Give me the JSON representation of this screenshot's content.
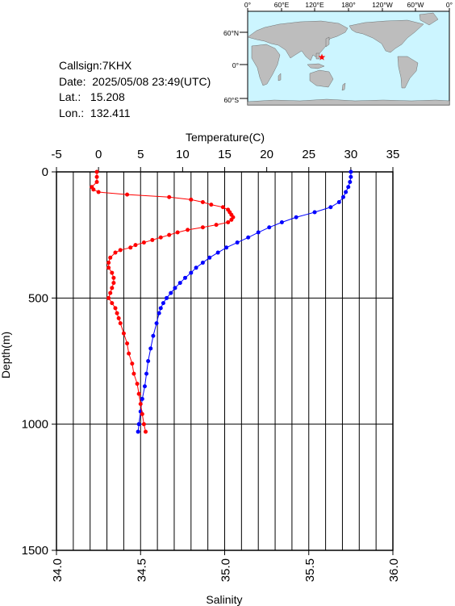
{
  "info": {
    "callsign": "Callsign:7KHX",
    "date": "Date:  2025/05/08 23:49(UTC)",
    "lat": "Lat.:   15.208",
    "lon": "Lon.:  132.411"
  },
  "map": {
    "top_labels": [
      "0°",
      "60°E",
      "120°E",
      "180°",
      "120°W",
      "60°W",
      "0°"
    ],
    "right_labels": [
      "60°N",
      "0°",
      "60°S"
    ],
    "station_marker": "red-star",
    "colors": {
      "ocean": "#ccf5ff",
      "land": "#bdbdbd",
      "star": "#ff0000"
    }
  },
  "chart_data": {
    "type": "line",
    "top_axis_label": "Temperature(C)",
    "bottom_axis_label": "Salinity",
    "y_axis_label": "Depth(m)",
    "temperature_ticks": [
      "-5",
      "0",
      "5",
      "10",
      "15",
      "20",
      "25",
      "30",
      "35"
    ],
    "salinity_ticks": [
      "34.0",
      "34.5",
      "35.0",
      "35.5",
      "36.0"
    ],
    "depth_ticks": [
      "0",
      "500",
      "1000",
      "1500"
    ],
    "temperature_range": [
      -5,
      35
    ],
    "salinity_range": [
      34.0,
      36.0
    ],
    "depth_range": [
      0,
      1500
    ],
    "grid": true,
    "series": [
      {
        "color": "#0000ff",
        "axis": "temperature",
        "points": [
          [
            0,
            30.0
          ],
          [
            20,
            30.0
          ],
          [
            40,
            29.9
          ],
          [
            60,
            29.7
          ],
          [
            80,
            29.4
          ],
          [
            100,
            29.1
          ],
          [
            120,
            28.6
          ],
          [
            140,
            27.6
          ],
          [
            160,
            25.7
          ],
          [
            180,
            23.5
          ],
          [
            200,
            21.8
          ],
          [
            220,
            20.3
          ],
          [
            240,
            19.0
          ],
          [
            260,
            17.8
          ],
          [
            280,
            16.5
          ],
          [
            300,
            15.2
          ],
          [
            320,
            14.2
          ],
          [
            340,
            13.2
          ],
          [
            360,
            12.4
          ],
          [
            380,
            11.6
          ],
          [
            400,
            11.0
          ],
          [
            420,
            10.3
          ],
          [
            440,
            9.7
          ],
          [
            460,
            9.1
          ],
          [
            480,
            8.6
          ],
          [
            500,
            8.1
          ],
          [
            520,
            7.7
          ],
          [
            540,
            7.4
          ],
          [
            560,
            7.2
          ],
          [
            600,
            6.9
          ],
          [
            650,
            6.5
          ],
          [
            700,
            6.2
          ],
          [
            750,
            5.9
          ],
          [
            800,
            5.7
          ],
          [
            850,
            5.5
          ],
          [
            900,
            5.2
          ],
          [
            950,
            5.0
          ],
          [
            1000,
            4.8
          ],
          [
            1030,
            4.7
          ]
        ]
      },
      {
        "color": "#ff0000",
        "axis": "salinity",
        "points": [
          [
            0,
            34.24
          ],
          [
            20,
            34.24
          ],
          [
            40,
            34.24
          ],
          [
            60,
            34.21
          ],
          [
            70,
            34.22
          ],
          [
            80,
            34.25
          ],
          [
            90,
            34.42
          ],
          [
            100,
            34.67
          ],
          [
            110,
            34.8
          ],
          [
            120,
            34.87
          ],
          [
            130,
            34.92
          ],
          [
            140,
            34.99
          ],
          [
            150,
            35.02
          ],
          [
            160,
            35.03
          ],
          [
            170,
            35.04
          ],
          [
            180,
            35.05
          ],
          [
            190,
            35.04
          ],
          [
            200,
            35.02
          ],
          [
            210,
            34.95
          ],
          [
            220,
            34.87
          ],
          [
            230,
            34.78
          ],
          [
            240,
            34.72
          ],
          [
            250,
            34.67
          ],
          [
            260,
            34.62
          ],
          [
            270,
            34.57
          ],
          [
            280,
            34.52
          ],
          [
            290,
            34.47
          ],
          [
            300,
            34.44
          ],
          [
            310,
            34.38
          ],
          [
            320,
            34.35
          ],
          [
            340,
            34.32
          ],
          [
            360,
            34.31
          ],
          [
            380,
            34.31
          ],
          [
            400,
            34.33
          ],
          [
            420,
            34.34
          ],
          [
            440,
            34.34
          ],
          [
            460,
            34.33
          ],
          [
            480,
            34.32
          ],
          [
            500,
            34.31
          ],
          [
            520,
            34.33
          ],
          [
            540,
            34.35
          ],
          [
            560,
            34.36
          ],
          [
            580,
            34.37
          ],
          [
            600,
            34.38
          ],
          [
            640,
            34.4
          ],
          [
            680,
            34.42
          ],
          [
            720,
            34.43
          ],
          [
            760,
            34.45
          ],
          [
            800,
            34.46
          ],
          [
            840,
            34.48
          ],
          [
            880,
            34.49
          ],
          [
            920,
            34.5
          ],
          [
            960,
            34.51
          ],
          [
            1000,
            34.52
          ],
          [
            1030,
            34.53
          ]
        ]
      }
    ]
  }
}
